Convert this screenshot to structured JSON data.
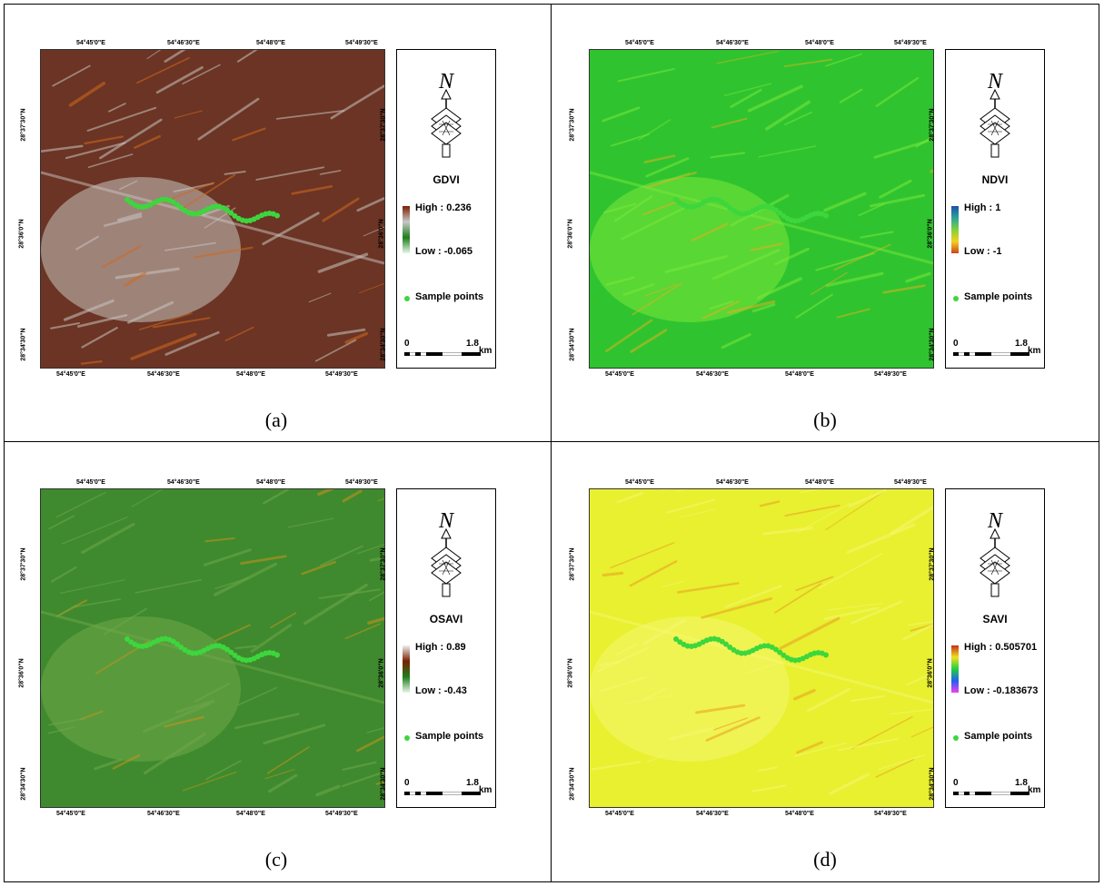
{
  "panels": [
    {
      "caption": "(a)",
      "index_name": "GDVI",
      "legend_high": "High : 0.236",
      "legend_low": "Low : -0.065",
      "ramp_colors": [
        "#7a1f00",
        "#c8c8c8",
        "#1e7d1e",
        "#e8f8e8"
      ],
      "map_base": "#6b3424",
      "map_light": "#c9c4c0",
      "map_accent": "#d2691e"
    },
    {
      "caption": "(b)",
      "index_name": "NDVI",
      "legend_high": "High : 1",
      "legend_low": "Low : -1",
      "ramp_colors": [
        "#1f4fa8",
        "#2aa39a",
        "#7fd13b",
        "#f5d020",
        "#c8461a"
      ],
      "map_base": "#2fc42f",
      "map_light": "#7ae83a",
      "map_accent": "#e0b020"
    },
    {
      "caption": "(c)",
      "index_name": "OSAVI",
      "legend_high": "High : 0.89",
      "legend_low": "Low : -0.43",
      "ramp_colors": [
        "#f0f0f0",
        "#7a1f00",
        "#1e7d1e",
        "#e8f8e8"
      ],
      "map_base": "#3f8a2e",
      "map_light": "#6fa84a",
      "map_accent": "#c8941a"
    },
    {
      "caption": "(d)",
      "index_name": "SAVI",
      "legend_high": "High : 0.505701",
      "legend_low": "Low : -0.183673",
      "ramp_colors": [
        "#c8301a",
        "#f0e020",
        "#20d040",
        "#2060f0",
        "#f040f0"
      ],
      "map_base": "#e8f030",
      "map_light": "#f5f870",
      "map_accent": "#e8a020"
    }
  ],
  "common": {
    "north_letter": "N",
    "sample_label": "Sample points",
    "scale_zero": "0",
    "scale_distance": "1.8",
    "scale_unit": "km",
    "lon_ticks": [
      "54°45'0\"E",
      "54°46'30\"E",
      "54°48'0\"E",
      "54°49'30\"E"
    ],
    "lat_ticks": [
      "28°37'30\"N",
      "28°36'0\"N",
      "28°34'30\"N"
    ],
    "sample_color": "#3dd63d"
  }
}
